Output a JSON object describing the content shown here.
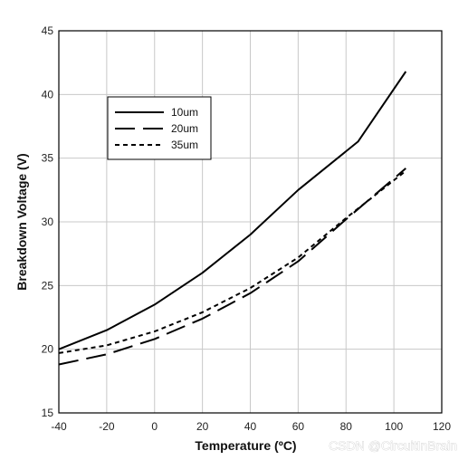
{
  "chart_data": {
    "type": "line",
    "xlabel": "Temperature (ºC)",
    "ylabel": "Breakdown Voltage (V)",
    "xlim": [
      -40,
      120
    ],
    "ylim": [
      15,
      45
    ],
    "xticks": [
      -40,
      -20,
      0,
      20,
      40,
      60,
      80,
      100,
      120
    ],
    "yticks": [
      15,
      20,
      25,
      30,
      35,
      40,
      45
    ],
    "grid": true,
    "legend_position": "top-left",
    "series": [
      {
        "name": "10um",
        "style": "solid",
        "x": [
          -40,
          -20,
          0,
          20,
          40,
          60,
          85,
          105
        ],
        "y": [
          20.0,
          21.5,
          23.5,
          26.0,
          29.0,
          32.5,
          36.3,
          41.8
        ]
      },
      {
        "name": "20um",
        "style": "long-dash",
        "x": [
          -40,
          -20,
          0,
          20,
          40,
          60,
          80,
          105
        ],
        "y": [
          18.8,
          19.6,
          20.8,
          22.4,
          24.4,
          26.9,
          30.2,
          34.2
        ]
      },
      {
        "name": "35um",
        "style": "short-dash",
        "x": [
          -40,
          -20,
          0,
          20,
          40,
          60,
          80,
          105
        ],
        "y": [
          19.7,
          20.3,
          21.4,
          22.9,
          24.8,
          27.2,
          30.3,
          34.0
        ]
      }
    ]
  },
  "watermark": "CSDN @CircuitInBrain",
  "colors": {
    "line": "#000000",
    "grid": "#c8c8c8",
    "frame": "#000000"
  }
}
